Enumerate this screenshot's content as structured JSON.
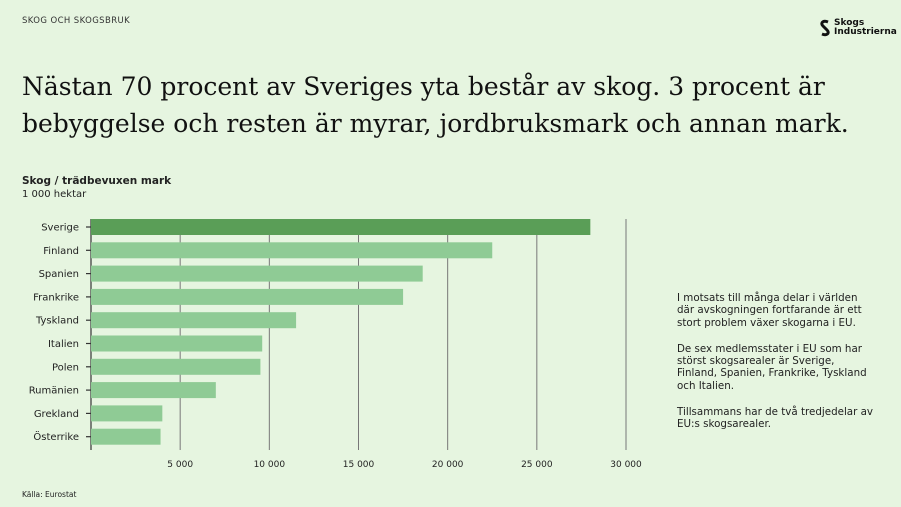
{
  "header": {
    "section": "SKOG OCH SKOGSBRUK",
    "logo_text": [
      "Skogs",
      "Industrierna"
    ],
    "title": "Nästan 70 procent av Sveriges yta består av skog. 3 procent är bebyggelse och resten är myrar, jordbruksmark och annan mark."
  },
  "chart_data": {
    "type": "bar",
    "orientation": "horizontal",
    "title": "Skog / trädbevuxen mark",
    "subtitle": "1 000 hektar",
    "categories": [
      "Sverige",
      "Finland",
      "Spanien",
      "Frankrike",
      "Tyskland",
      "Italien",
      "Polen",
      "Rumänien",
      "Grekland",
      "Österrike"
    ],
    "values": [
      28000,
      22500,
      18600,
      17500,
      11500,
      9600,
      9500,
      7000,
      4000,
      3900
    ],
    "xlim": [
      0,
      30000
    ],
    "xticks": [
      5000,
      10000,
      15000,
      20000,
      25000,
      30000
    ],
    "xtick_labels": [
      "5 000",
      "10 000",
      "15 000",
      "20 000",
      "25 000",
      "30 000"
    ],
    "grid": true,
    "colors": {
      "highlight": "#5a9e57",
      "bar": "#8fcb95",
      "grid": "#777777"
    }
  },
  "source": "Källa: Eurostat",
  "side_text": [
    "I motsats till många delar i världen där avskogningen fortfarande är ett stort problem växer skogarna i EU.",
    "De sex medlemsstater i EU som har störst skogsarealer är Sverige, Finland, Spanien, Frankrike, Tyskland och Italien.",
    "Tillsammans har de två tredjedelar av EU:s skogsarealer."
  ]
}
